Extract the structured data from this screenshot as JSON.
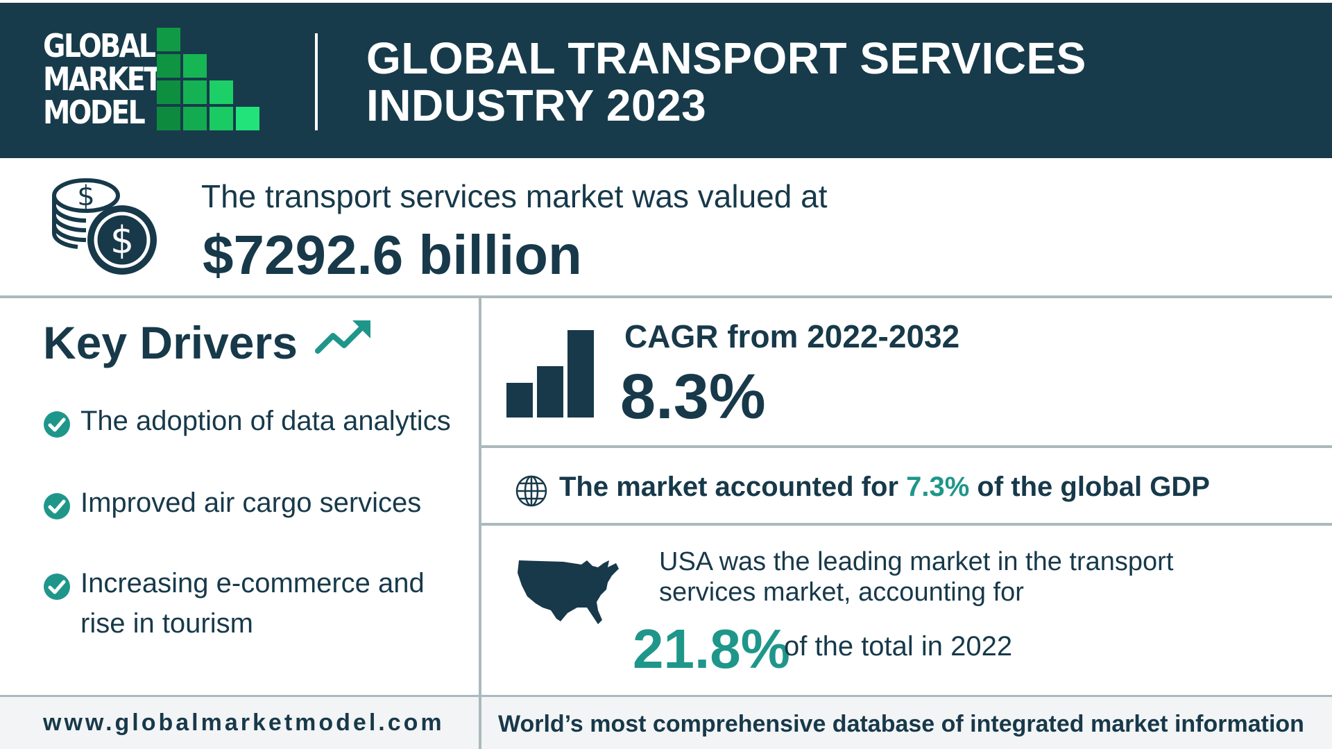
{
  "brand": {
    "logo_lines": [
      "GLOBAL",
      "MARKET",
      "MODEL"
    ],
    "colors": {
      "navy": "#173b4b",
      "teal": "#1f968a",
      "green_dark": "#0f8a3f",
      "green_light": "#22e27a",
      "rule": "#aab9bd"
    }
  },
  "header": {
    "title_line1": "GLOBAL TRANSPORT SERVICES",
    "title_line2": "INDUSTRY 2023"
  },
  "valuation": {
    "icon": "money-coins-icon",
    "label": "The transport services market was valued at",
    "value": "$7292.6 billion"
  },
  "key_drivers": {
    "title": "Key Drivers",
    "icon": "trend-up-icon",
    "items": [
      {
        "line1": "The adoption of data analytics",
        "line2": ""
      },
      {
        "line1": "Improved air cargo services",
        "line2": ""
      },
      {
        "line1": "Increasing e-commerce and",
        "line2": "rise in tourism"
      }
    ]
  },
  "cagr": {
    "icon": "bar-chart-icon",
    "label": "CAGR from 2022-2032",
    "value": "8.3%"
  },
  "gdp": {
    "icon": "globe-icon",
    "prefix": "The market accounted for ",
    "value": "7.3%",
    "suffix": " of the global GDP"
  },
  "usa": {
    "icon": "usa-map-icon",
    "line1": "USA was the leading market in the transport",
    "line2": "services market, accounting for",
    "value": "21.8%",
    "suffix": "of the total in 2022"
  },
  "footer": {
    "url": "www.globalmarketmodel.com",
    "tagline": "World’s most comprehensive database of integrated market information"
  }
}
